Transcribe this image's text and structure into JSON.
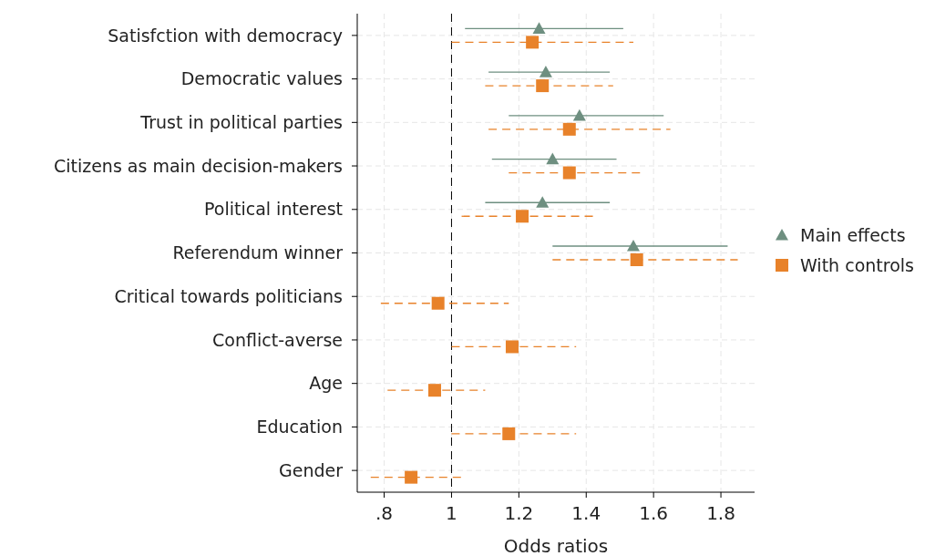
{
  "chart_data": {
    "type": "scatter",
    "orientation": "horizontal",
    "xlabel": "Odds ratios",
    "categories": [
      "Satisfction with democracy",
      "Democratic values",
      "Trust in political parties",
      "Citizens as main decision-makers",
      "Political interest",
      "Referendum winner",
      "Critical towards politicians",
      "Conflict-averse",
      "Age",
      "Education",
      "Gender"
    ],
    "xlim": [
      0.72,
      1.9
    ],
    "xticks": [
      {
        "value": 0.8,
        "label": ".8"
      },
      1,
      1.2,
      1.4,
      1.6,
      1.8
    ],
    "grid": true,
    "legend": "right",
    "ref_lines": [
      {
        "axis": "x",
        "value": 1,
        "line_style": "dashed",
        "color": "#000000"
      }
    ],
    "series": [
      {
        "name": "Main effects",
        "color": "#6e8f80",
        "marker": "triangle",
        "line_style": "solid",
        "values": [
          1.26,
          1.28,
          1.38,
          1.3,
          1.27,
          1.54,
          null,
          null,
          null,
          null,
          null
        ],
        "errors": [
          [
            1.04,
            1.51
          ],
          [
            1.11,
            1.47
          ],
          [
            1.17,
            1.63
          ],
          [
            1.12,
            1.49
          ],
          [
            1.1,
            1.47
          ],
          [
            1.3,
            1.82
          ],
          null,
          null,
          null,
          null,
          null
        ]
      },
      {
        "name": "With controls",
        "color": "#e8822a",
        "marker": "square",
        "line_style": "dashed",
        "values": [
          1.24,
          1.27,
          1.35,
          1.35,
          1.21,
          1.55,
          0.96,
          1.18,
          0.95,
          1.17,
          0.88
        ],
        "errors": [
          [
            1.0,
            1.54
          ],
          [
            1.1,
            1.48
          ],
          [
            1.11,
            1.65
          ],
          [
            1.17,
            1.56
          ],
          [
            1.03,
            1.42
          ],
          [
            1.3,
            1.85
          ],
          [
            0.79,
            1.17
          ],
          [
            1.0,
            1.37
          ],
          [
            0.81,
            1.1
          ],
          [
            1.0,
            1.37
          ],
          [
            0.76,
            1.03
          ]
        ]
      }
    ]
  }
}
